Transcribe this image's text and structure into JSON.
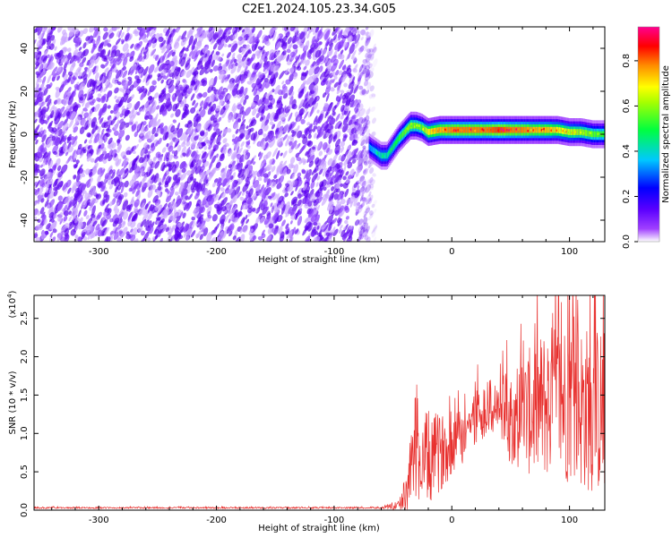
{
  "page_title": "C2E1.2024.105.23.34.G05",
  "chart_data": [
    {
      "type": "heatmap",
      "xlabel": "Height of straight line (km)",
      "ylabel": "Frequency (Hz)",
      "xlim": [
        -355,
        130
      ],
      "ylim": [
        -50,
        50
      ],
      "x_ticks": [
        -300,
        -200,
        -100,
        0,
        100
      ],
      "y_ticks": [
        -40,
        -20,
        0,
        20,
        40
      ],
      "grid": false,
      "colorbar": {
        "label": "Normalized spectral amplitude",
        "range": [
          0,
          0.95
        ],
        "ticks": [
          0.0,
          0.2,
          0.4,
          0.6,
          0.8
        ],
        "colors": [
          "#ffffff",
          "#7a00ff",
          "#0000ff",
          "#00e5ff",
          "#00ff00",
          "#ffff00",
          "#ff8000",
          "#ff0000",
          "#ff0080"
        ]
      },
      "noise_region": {
        "x_range": [
          -355,
          -65
        ],
        "amplitude_range": [
          0.0,
          0.12
        ]
      },
      "signal_ridge": {
        "x": [
          -70,
          -65,
          -60,
          -55,
          -50,
          -45,
          -40,
          -35,
          -30,
          -25,
          -20,
          -10,
          0,
          10,
          20,
          30,
          40,
          50,
          60,
          70,
          80,
          90,
          100,
          110,
          120,
          130
        ],
        "y": [
          -6,
          -8,
          -10,
          -10,
          -6,
          -2,
          1,
          4,
          4,
          3,
          1,
          2,
          2,
          2,
          2,
          2,
          2,
          2,
          2,
          2,
          2,
          2,
          1,
          1,
          0,
          0
        ],
        "peak_amplitude": [
          0.35,
          0.4,
          0.45,
          0.45,
          0.5,
          0.55,
          0.6,
          0.65,
          0.6,
          0.6,
          0.75,
          0.8,
          0.85,
          0.85,
          0.85,
          0.85,
          0.9,
          0.85,
          0.85,
          0.8,
          0.8,
          0.75,
          0.7,
          0.65,
          0.6,
          0.55
        ]
      }
    },
    {
      "type": "line",
      "xlabel": "Height of straight line (km)",
      "ylabel": "SNR (10 * v/v)",
      "y_multiplier": "(x10",
      "y_multiplier_exp": "4",
      "xlim": [
        -355,
        130
      ],
      "ylim": [
        0,
        2.8
      ],
      "x_ticks": [
        -300,
        -200,
        -100,
        0,
        100
      ],
      "y_ticks": [
        0.0,
        0.5,
        1.0,
        1.5,
        2.0,
        2.5
      ],
      "grid": false,
      "series": [
        {
          "color": "#e8312f",
          "x": [
            -355,
            -300,
            -250,
            -200,
            -150,
            -100,
            -60,
            -45,
            -40,
            -35,
            -30,
            -20,
            -10,
            0,
            10,
            20,
            30,
            40,
            50,
            60,
            70,
            80,
            90,
            100,
            110,
            120,
            130
          ],
          "y": [
            0.03,
            0.03,
            0.03,
            0.03,
            0.03,
            0.03,
            0.03,
            0.05,
            0.2,
            0.45,
            0.6,
            0.65,
            0.75,
            0.85,
            1.0,
            1.2,
            1.35,
            1.3,
            1.2,
            1.25,
            1.3,
            1.4,
            1.4,
            1.45,
            1.35,
            1.3,
            1.3
          ],
          "spread": [
            0.01,
            0.01,
            0.01,
            0.01,
            0.01,
            0.01,
            0.01,
            0.05,
            0.25,
            0.5,
            0.6,
            0.65,
            0.5,
            0.4,
            0.4,
            0.4,
            0.35,
            0.45,
            0.6,
            0.75,
            0.9,
            1.0,
            1.1,
            1.1,
            1.1,
            1.1,
            1.1
          ]
        }
      ]
    }
  ]
}
